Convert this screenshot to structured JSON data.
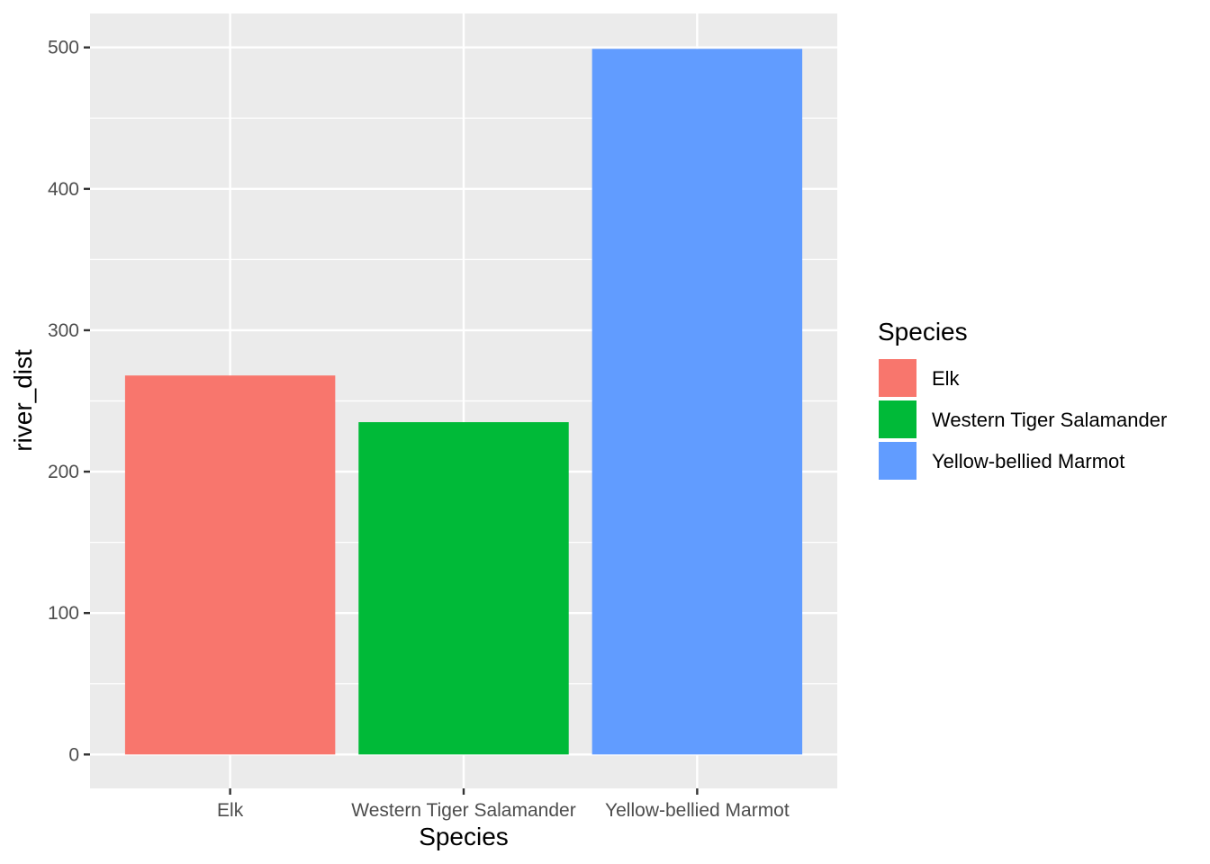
{
  "chart_data": {
    "type": "bar",
    "categories": [
      "Elk",
      "Western Tiger Salamander",
      "Yellow-bellied Marmot"
    ],
    "values": [
      268,
      235,
      499
    ],
    "xlabel": "Species",
    "ylabel": "river_dist",
    "ylim": [
      -24,
      524
    ],
    "yticks": [
      0,
      100,
      200,
      300,
      400,
      500
    ],
    "grid": true,
    "legend": {
      "title": "Species",
      "position": "right",
      "entries": [
        "Elk",
        "Western Tiger Salamander",
        "Yellow-bellied Marmot"
      ]
    },
    "colors": [
      "#F8766D",
      "#00BA38",
      "#619CFF"
    ],
    "panel_background": "#EBEBEB",
    "grid_color": "#FFFFFF"
  }
}
